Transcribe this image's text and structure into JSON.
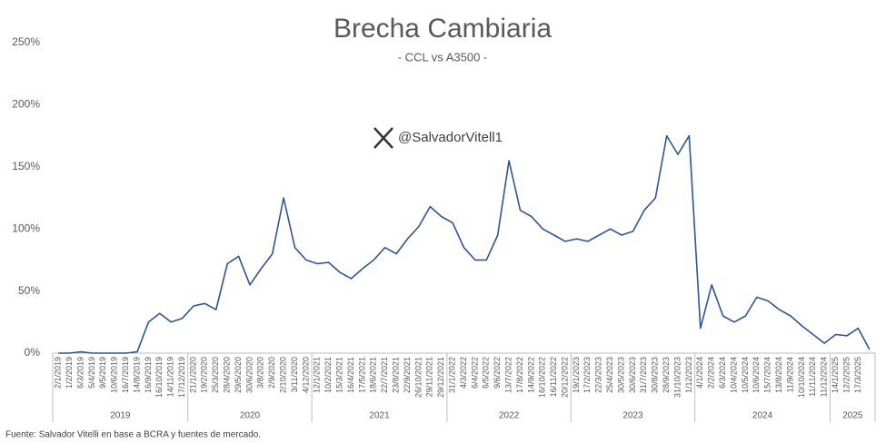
{
  "chart_data": {
    "type": "line",
    "title": "Brecha Cambiaria",
    "subtitle": "- CCL vs A3500 -",
    "watermark": "@SalvadorVitell1",
    "source": "Fuente: Salvador Vitelli en base a BCRA y fuentes de mercado.",
    "categories": [
      "2/1/2019",
      "1/2/2019",
      "6/3/2019",
      "5/4/2019",
      "9/5/2019",
      "10/6/2019",
      "16/7/2019",
      "14/8/2019",
      "16/9/2019",
      "16/10/2019",
      "14/11/2019",
      "17/12/2019",
      "21/1/2020",
      "19/2/2020",
      "25/3/2020",
      "28/4/2020",
      "29/5/2020",
      "30/6/2020",
      "3/8/2020",
      "2/9/2020",
      "2/10/2020",
      "3/11/2020",
      "4/12/2020",
      "12/1/2021",
      "10/2/2021",
      "15/3/2021",
      "16/4/2021",
      "17/5/2021",
      "18/6/2021",
      "22/7/2021",
      "23/8/2021",
      "22/9/2021",
      "26/10/2021",
      "29/11/2021",
      "29/12/2021",
      "31/1/2022",
      "4/3/2022",
      "6/4/2022",
      "6/5/2022",
      "9/6/2022",
      "13/7/2022",
      "17/8/2022",
      "14/9/2022",
      "16/10/2022",
      "16/11/2022",
      "20/12/2022",
      "19/1/2023",
      "17/2/2023",
      "22/3/2023",
      "25/4/2023",
      "30/5/2023",
      "30/6/2023",
      "31/7/2023",
      "30/8/2023",
      "28/9/2023",
      "31/10/2023",
      "1/12/2023",
      "4/1/2024",
      "2/2/2024",
      "6/3/2024",
      "10/4/2024",
      "10/5/2024",
      "10/6/2024",
      "15/7/2024",
      "13/8/2024",
      "11/9/2024",
      "10/10/2024",
      "11/11/2024",
      "11/12/2024",
      "14/1/2025",
      "12/2/2025",
      "17/3/2025",
      null
    ],
    "series": [
      {
        "name": "Brecha",
        "color": "#2f5597",
        "values": [
          0,
          0,
          1,
          0,
          0,
          0,
          0,
          1,
          25,
          32,
          25,
          28,
          38,
          40,
          35,
          72,
          78,
          55,
          68,
          80,
          125,
          85,
          75,
          72,
          73,
          65,
          60,
          68,
          75,
          85,
          80,
          92,
          102,
          118,
          110,
          105,
          85,
          75,
          75,
          95,
          155,
          115,
          110,
          100,
          95,
          90,
          92,
          90,
          95,
          100,
          95,
          98,
          115,
          125,
          175,
          160,
          175,
          20,
          55,
          30,
          25,
          30,
          45,
          42,
          35,
          30,
          22,
          15,
          8,
          15,
          14,
          20,
          3
        ]
      }
    ],
    "years": [
      "2019",
      "2020",
      "2021",
      "2022",
      "2023",
      "2024",
      "2025"
    ],
    "ylim": [
      0,
      250
    ],
    "yticks": [
      {
        "value": 0,
        "label": "0%"
      },
      {
        "value": 50,
        "label": "50%"
      },
      {
        "value": 100,
        "label": "100%"
      },
      {
        "value": 150,
        "label": "150%"
      },
      {
        "value": 200,
        "label": "200%"
      },
      {
        "value": 250,
        "label": "250%"
      }
    ],
    "grid": false
  }
}
